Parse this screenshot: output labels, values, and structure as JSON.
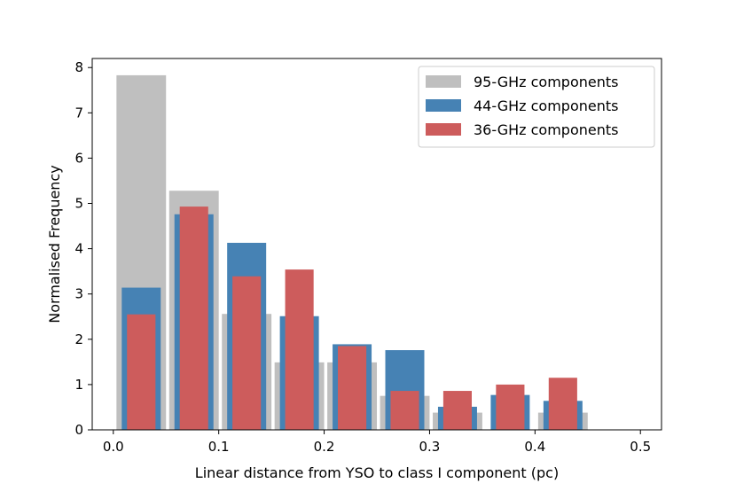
{
  "chart_data": {
    "type": "bar",
    "title": "",
    "xlabel": "Linear distance from YSO to class I component (pc)",
    "ylabel": "Normalised Frequency",
    "xlim": [
      -0.02,
      0.52
    ],
    "ylim": [
      0,
      8.2
    ],
    "xticks": [
      0.0,
      0.1,
      0.2,
      0.3,
      0.4,
      0.5
    ],
    "xtick_labels": [
      "0.0",
      "0.1",
      "0.2",
      "0.3",
      "0.4",
      "0.5"
    ],
    "yticks": [
      0,
      1,
      2,
      3,
      4,
      5,
      6,
      7,
      8
    ],
    "ytick_labels": [
      "0",
      "1",
      "2",
      "3",
      "4",
      "5",
      "6",
      "7",
      "8"
    ],
    "legend_position": "top-right",
    "series": [
      {
        "name": "95-GHz components",
        "color": "#bfbfbf",
        "bins": [
          {
            "x0": 0.003,
            "x1": 0.05,
            "value": 7.83
          },
          {
            "x0": 0.053,
            "x1": 0.1,
            "value": 5.28
          },
          {
            "x0": 0.103,
            "x1": 0.15,
            "value": 2.56
          },
          {
            "x0": 0.153,
            "x1": 0.2,
            "value": 1.49
          },
          {
            "x0": 0.203,
            "x1": 0.25,
            "value": 1.49
          },
          {
            "x0": 0.253,
            "x1": 0.3,
            "value": 0.75
          },
          {
            "x0": 0.303,
            "x1": 0.35,
            "value": 0.38
          },
          {
            "x0": 0.353,
            "x1": 0.4,
            "value": 0.0
          },
          {
            "x0": 0.403,
            "x1": 0.45,
            "value": 0.38
          },
          {
            "x0": 0.453,
            "x1": 0.5,
            "value": 0.0
          }
        ]
      },
      {
        "name": "44-GHz components",
        "color": "#4682b4",
        "bins": [
          {
            "x0": 0.008,
            "x1": 0.045,
            "value": 3.14
          },
          {
            "x0": 0.058,
            "x1": 0.095,
            "value": 4.76
          },
          {
            "x0": 0.108,
            "x1": 0.145,
            "value": 4.13
          },
          {
            "x0": 0.158,
            "x1": 0.195,
            "value": 2.51
          },
          {
            "x0": 0.208,
            "x1": 0.245,
            "value": 1.89
          },
          {
            "x0": 0.258,
            "x1": 0.295,
            "value": 1.76
          },
          {
            "x0": 0.308,
            "x1": 0.345,
            "value": 0.51
          },
          {
            "x0": 0.358,
            "x1": 0.395,
            "value": 0.77
          },
          {
            "x0": 0.408,
            "x1": 0.445,
            "value": 0.64
          },
          {
            "x0": 0.458,
            "x1": 0.495,
            "value": 0.0
          }
        ]
      },
      {
        "name": "36-GHz components",
        "color": "#cd5c5c",
        "bins": [
          {
            "x0": 0.013,
            "x1": 0.04,
            "value": 2.55
          },
          {
            "x0": 0.063,
            "x1": 0.09,
            "value": 4.93
          },
          {
            "x0": 0.113,
            "x1": 0.14,
            "value": 3.39
          },
          {
            "x0": 0.163,
            "x1": 0.19,
            "value": 3.54
          },
          {
            "x0": 0.213,
            "x1": 0.24,
            "value": 1.85
          },
          {
            "x0": 0.263,
            "x1": 0.29,
            "value": 0.86
          },
          {
            "x0": 0.313,
            "x1": 0.34,
            "value": 0.86
          },
          {
            "x0": 0.363,
            "x1": 0.39,
            "value": 1.0
          },
          {
            "x0": 0.413,
            "x1": 0.44,
            "value": 1.15
          },
          {
            "x0": 0.463,
            "x1": 0.49,
            "value": 0.0
          }
        ]
      }
    ]
  }
}
